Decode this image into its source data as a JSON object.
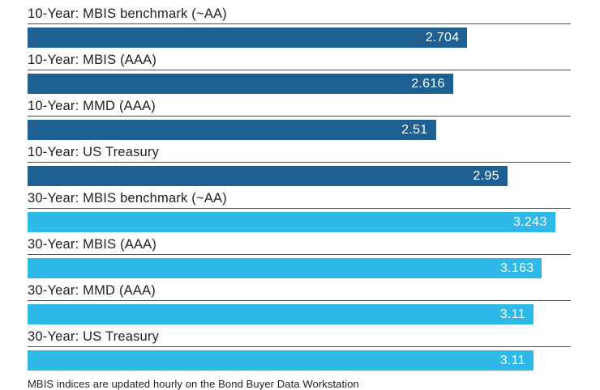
{
  "chart_data": {
    "type": "bar",
    "orientation": "horizontal",
    "title": "",
    "xlabel": "",
    "ylabel": "",
    "xlim": [
      0,
      3.34
    ],
    "grid": false,
    "legend": "none",
    "colors": {
      "ten_year": "#1d6091",
      "thirty_year": "#2fb9e9"
    },
    "footer": "MBIS indices are updated hourly on the Bond Buyer Data Workstation",
    "rows": [
      {
        "label": "10-Year: MBIS benchmark (~AA)",
        "value": 2.704,
        "display": "2.704",
        "series": "ten_year"
      },
      {
        "label": "10-Year: MBIS (AAA)",
        "value": 2.616,
        "display": "2.616",
        "series": "ten_year"
      },
      {
        "label": "10-Year: MMD (AAA)",
        "value": 2.51,
        "display": "2.51",
        "series": "ten_year"
      },
      {
        "label": "10-Year: US Treasury",
        "value": 2.95,
        "display": "2.95",
        "series": "ten_year"
      },
      {
        "label": "30-Year: MBIS benchmark (~AA)",
        "value": 3.243,
        "display": "3.243",
        "series": "thirty_year"
      },
      {
        "label": "30-Year: MBIS (AAA)",
        "value": 3.163,
        "display": "3.163",
        "series": "thirty_year"
      },
      {
        "label": "30-Year: MMD (AAA)",
        "value": 3.11,
        "display": "3.11",
        "series": "thirty_year"
      },
      {
        "label": "30-Year: US Treasury",
        "value": 3.11,
        "display": "3.11",
        "series": "thirty_year"
      }
    ]
  }
}
